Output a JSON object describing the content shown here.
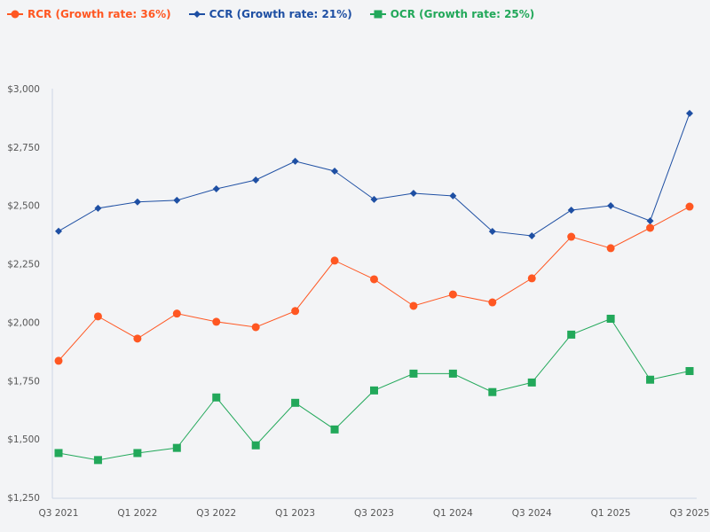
{
  "chart_data": {
    "type": "line",
    "title": "",
    "xlabel": "",
    "ylabel": "",
    "ylim": [
      1250,
      3000
    ],
    "yticks": [
      "$1,250",
      "$1,500",
      "$1,750",
      "$2,000",
      "$2,250",
      "$2,500",
      "$2,750",
      "$3,000"
    ],
    "ytick_values": [
      1250,
      1500,
      1750,
      2000,
      2250,
      2500,
      2750,
      3000
    ],
    "categories": [
      "Q3 2021",
      "Q4 2021",
      "Q1 2022",
      "Q2 2022",
      "Q3 2022",
      "Q4 2022",
      "Q1 2023",
      "Q2 2023",
      "Q3 2023",
      "Q4 2023",
      "Q1 2024",
      "Q2 2024",
      "Q3 2024",
      "Q4 2024",
      "Q1 2025",
      "Q2 2025",
      "Q3 2025"
    ],
    "xtick_labels": [
      "Q3 2021",
      "Q1 2022",
      "Q3 2022",
      "Q1 2023",
      "Q3 2023",
      "Q1 2024",
      "Q3 2024",
      "Q1 2025",
      "Q3 2025"
    ],
    "grid": false,
    "legend_position": "top-left",
    "series": [
      {
        "name": "RCR (Growth rate: 36%)",
        "color": "#ff5722",
        "marker": "circle",
        "values": [
          1835,
          2025,
          1930,
          2037,
          2002,
          1979,
          2048,
          2264,
          2184,
          2070,
          2119,
          2085,
          2188,
          2366,
          2317,
          2404,
          2495
        ]
      },
      {
        "name": "CCR (Growth rate: 21%)",
        "color": "#1e4fa3",
        "marker": "diamond",
        "values": [
          2390,
          2488,
          2515,
          2522,
          2571,
          2609,
          2689,
          2647,
          2526,
          2552,
          2541,
          2389,
          2370,
          2480,
          2499,
          2434,
          2894
        ]
      },
      {
        "name": "OCR (Growth rate: 25%)",
        "color": "#22a85a",
        "marker": "square",
        "values": [
          1440,
          1410,
          1440,
          1462,
          1678,
          1473,
          1655,
          1541,
          1708,
          1780,
          1780,
          1701,
          1742,
          1947,
          2015,
          1754,
          1791
        ]
      }
    ]
  }
}
